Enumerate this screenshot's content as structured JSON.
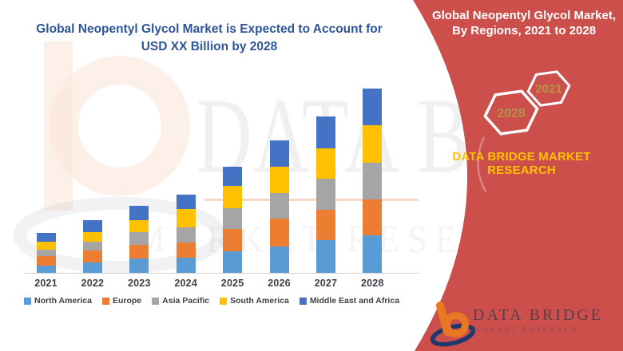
{
  "title": {
    "line1": "Global Neopentyl Glycol Market is Expected to Account for",
    "line2": "USD XX Billion by 2028"
  },
  "chart_data": {
    "type": "bar",
    "stacked": true,
    "title": "Global Neopentyl Glycol Market is Expected to Account for USD XX Billion by 2028",
    "xlabel": "",
    "ylabel": "",
    "y_axis_visible": false,
    "grid": false,
    "legend_position": "bottom",
    "units": "relative (USD XX Billion not disclosed)",
    "categories": [
      "2021",
      "2022",
      "2023",
      "2024",
      "2025",
      "2026",
      "2027",
      "2028"
    ],
    "series": [
      {
        "name": "North America",
        "color": "#5B9BD5",
        "values": [
          9,
          13,
          18,
          19,
          27,
          33,
          41,
          47
        ]
      },
      {
        "name": "Europe",
        "color": "#ED7D31",
        "values": [
          12,
          15,
          17,
          19,
          28,
          35,
          38,
          45
        ]
      },
      {
        "name": "Asia Pacific",
        "color": "#A5A5A5",
        "values": [
          8,
          11,
          16,
          19,
          26,
          32,
          39,
          46
        ]
      },
      {
        "name": "South America",
        "color": "#FFC000",
        "values": [
          10,
          12,
          15,
          23,
          28,
          33,
          38,
          47
        ]
      },
      {
        "name": "Middle East and Africa",
        "color": "#4472C4",
        "values": [
          11,
          15,
          18,
          18,
          24,
          33,
          40,
          46
        ]
      }
    ],
    "totals": [
      50,
      66,
      84,
      98,
      133,
      166,
      196,
      231
    ]
  },
  "sidebar": {
    "heading_line1": "Global Neopentyl Glycol Market,",
    "heading_line2": "By Regions, 2021 to 2028",
    "hexagon_years": {
      "front": "2021",
      "back": "2028"
    },
    "brand_line1": "DATA BRIDGE MARKET",
    "brand_line2": "RESEARCH",
    "logo_title": "DATA BRIDGE",
    "logo_subtitle": "MARKET RESEARCH"
  },
  "watermark": {
    "line1": "DATA BRIDGE",
    "line2": "MARKET RESEARCH"
  },
  "colors": {
    "panel_red": "#CC4F4B",
    "title_blue": "#2E5597",
    "brand_yellow": "#FFC000",
    "hexagon_gold": "#B49446",
    "axis_label": "#3F3F46",
    "logo_orange": "#E87824",
    "logo_navy": "#20386B",
    "watermark_peach": "#FBE3D7"
  }
}
